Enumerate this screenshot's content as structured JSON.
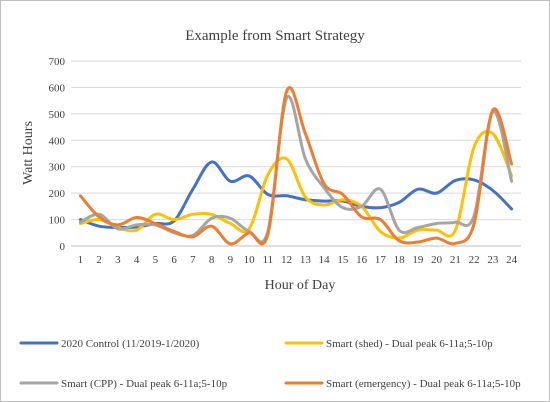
{
  "chart_data": {
    "type": "line",
    "title": "Example from Smart Strategy",
    "xlabel": "Hour of Day",
    "ylabel": "Watt Hours",
    "ylim": [
      0,
      700
    ],
    "yticks": [
      0,
      100,
      200,
      300,
      400,
      500,
      600,
      700
    ],
    "grid": true,
    "legend_position": "bottom",
    "x": [
      1,
      2,
      3,
      4,
      5,
      6,
      7,
      8,
      9,
      10,
      11,
      12,
      13,
      14,
      15,
      16,
      17,
      18,
      19,
      20,
      21,
      22,
      23,
      24
    ],
    "series": [
      {
        "name": "2020 Control (11/2019-1/2020)",
        "color": "#4472c4",
        "values": [
          100,
          75,
          70,
          72,
          85,
          95,
          215,
          318,
          245,
          265,
          195,
          190,
          175,
          170,
          170,
          150,
          145,
          165,
          215,
          200,
          248,
          250,
          210,
          140
        ]
      },
      {
        "name": "Smart (shed) - Dual peak 6-11a;5-10p",
        "color": "#ffc000",
        "values": [
          85,
          100,
          70,
          60,
          120,
          100,
          120,
          120,
          85,
          65,
          270,
          330,
          185,
          155,
          175,
          150,
          55,
          30,
          60,
          60,
          60,
          375,
          425,
          265
        ]
      },
      {
        "name": "Smart (CPP) - Dual peak 6-11a;5-10p",
        "color": "#a5a5a5",
        "values": [
          90,
          120,
          65,
          80,
          80,
          50,
          40,
          105,
          105,
          55,
          55,
          560,
          330,
          220,
          145,
          150,
          215,
          60,
          70,
          85,
          90,
          115,
          510,
          245
        ]
      },
      {
        "name": "Smart (emergency) - Dual peak 6-11a;5-10p",
        "color": "#ed7d31",
        "values": [
          190,
          110,
          80,
          108,
          85,
          55,
          35,
          75,
          8,
          50,
          45,
          585,
          425,
          235,
          195,
          110,
          100,
          20,
          15,
          30,
          10,
          85,
          515,
          310
        ]
      }
    ]
  }
}
